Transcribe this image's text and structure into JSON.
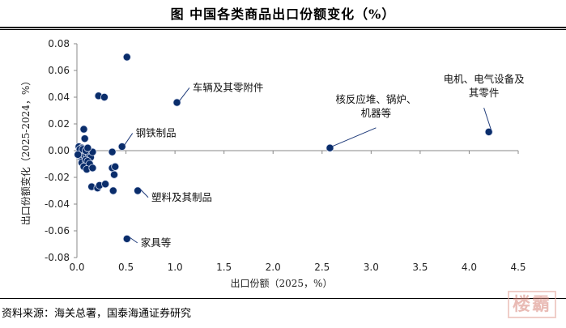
{
  "title": "图  中国各类商品出口份额变化（%）",
  "source": "资料来源：海关总署，国泰海通证券研究",
  "watermark_text": "楼霸",
  "chart_data": {
    "type": "scatter",
    "xlabel": "出口份额（2025，%）",
    "ylabel": "出口份额变化（2025-2024，%）",
    "xlim": [
      0,
      4.5
    ],
    "ylim": [
      -0.08,
      0.08
    ],
    "x_ticks": [
      "0.0",
      "0.5",
      "1.0",
      "1.5",
      "2.0",
      "2.5",
      "3.0",
      "3.5",
      "4.0",
      "4.5"
    ],
    "y_ticks": [
      "0.08",
      "0.06",
      "0.04",
      "0.02",
      "0.00",
      "-0.02",
      "-0.04",
      "-0.06",
      "-0.08"
    ],
    "grid": false,
    "marker_color": "#0a2d6b",
    "points": [
      {
        "x": 0.51,
        "y": 0.07
      },
      {
        "x": 0.22,
        "y": 0.041
      },
      {
        "x": 0.28,
        "y": 0.04
      },
      {
        "x": 1.02,
        "y": 0.036
      },
      {
        "x": 4.2,
        "y": 0.014
      },
      {
        "x": 2.58,
        "y": 0.002
      },
      {
        "x": 0.46,
        "y": 0.003
      },
      {
        "x": 0.07,
        "y": 0.016
      },
      {
        "x": 0.08,
        "y": 0.009
      },
      {
        "x": 0.36,
        "y": -0.001
      },
      {
        "x": 0.02,
        "y": 0.003
      },
      {
        "x": 0.03,
        "y": -0.002
      },
      {
        "x": 0.05,
        "y": 0.002
      },
      {
        "x": 0.04,
        "y": -0.005
      },
      {
        "x": 0.06,
        "y": -0.006
      },
      {
        "x": 0.08,
        "y": -0.004
      },
      {
        "x": 0.1,
        "y": -0.003
      },
      {
        "x": 0.12,
        "y": -0.002
      },
      {
        "x": 0.14,
        "y": -0.005
      },
      {
        "x": 0.16,
        "y": -0.001
      },
      {
        "x": 0.05,
        "y": -0.009
      },
      {
        "x": 0.09,
        "y": -0.007
      },
      {
        "x": 0.11,
        "y": -0.008
      },
      {
        "x": 0.07,
        "y": -0.012
      },
      {
        "x": 0.13,
        "y": -0.01
      },
      {
        "x": 0.1,
        "y": -0.014
      },
      {
        "x": 0.16,
        "y": -0.013
      },
      {
        "x": 0.03,
        "y": 0.001
      },
      {
        "x": 0.06,
        "y": 0.001
      },
      {
        "x": 0.09,
        "y": 0.0
      },
      {
        "x": 0.11,
        "y": 0.002
      },
      {
        "x": 0.01,
        "y": -0.003
      },
      {
        "x": 0.36,
        "y": -0.013
      },
      {
        "x": 0.39,
        "y": -0.012
      },
      {
        "x": 0.38,
        "y": -0.018
      },
      {
        "x": 0.15,
        "y": -0.027
      },
      {
        "x": 0.21,
        "y": -0.028
      },
      {
        "x": 0.23,
        "y": -0.026
      },
      {
        "x": 0.29,
        "y": -0.025
      },
      {
        "x": 0.37,
        "y": -0.03
      },
      {
        "x": 0.62,
        "y": -0.03
      },
      {
        "x": 0.51,
        "y": -0.066
      }
    ],
    "annotations": [
      {
        "text": "车辆及其零附件",
        "x": 1.02,
        "y": 0.036,
        "lines": [
          "车辆及其零附件"
        ],
        "anchor": "start",
        "label_x": 1.18,
        "label_y": 0.047
      },
      {
        "text": "电机、电气设备及其零件",
        "x": 4.2,
        "y": 0.014,
        "lines": [
          "电机、电气设备及",
          "其零件"
        ],
        "anchor": "middle",
        "label_x": 4.15,
        "label_y": 0.046
      },
      {
        "text": "核反应堆、锅炉、机器等",
        "x": 2.58,
        "y": 0.002,
        "lines": [
          "核反应堆、锅炉、",
          "机器等"
        ],
        "anchor": "middle",
        "label_x": 3.05,
        "label_y": 0.031
      },
      {
        "text": "钢铁制品",
        "x": 0.46,
        "y": 0.003,
        "lines": [
          "钢铁制品"
        ],
        "anchor": "start",
        "label_x": 0.6,
        "label_y": 0.013
      },
      {
        "text": "塑料及其制品",
        "x": 0.62,
        "y": -0.03,
        "lines": [
          "塑料及其制品"
        ],
        "anchor": "start",
        "label_x": 0.76,
        "label_y": -0.035
      },
      {
        "text": "家具等",
        "x": 0.51,
        "y": -0.066,
        "lines": [
          "家具等"
        ],
        "anchor": "start",
        "label_x": 0.65,
        "label_y": -0.069
      }
    ]
  }
}
